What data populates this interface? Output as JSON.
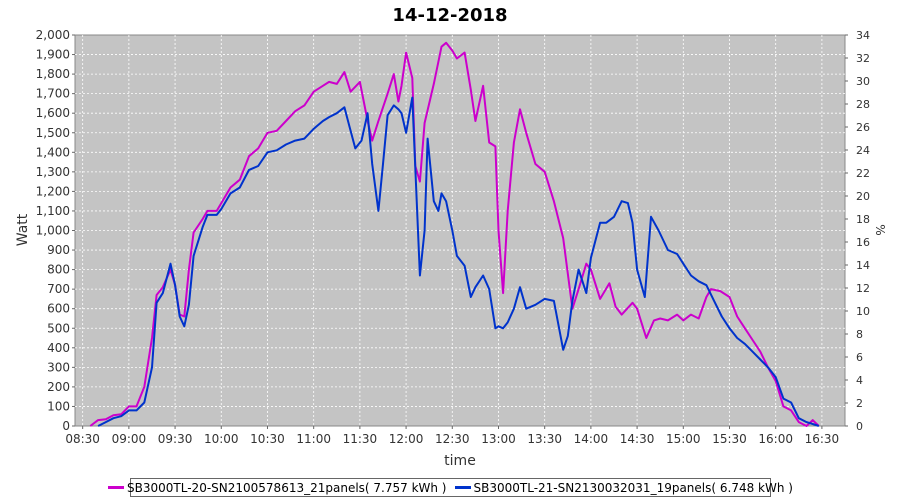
{
  "chart_data": {
    "type": "line",
    "title": "14-12-2018",
    "xlabel": "time",
    "ylabel": "Watt",
    "y2label": "%",
    "ylim": [
      0,
      2000
    ],
    "y2lim": [
      0,
      34
    ],
    "x_range_hours": [
      8.417,
      16.75
    ],
    "grid": true,
    "legend_position": "bottom",
    "x_ticks": [
      {
        "t": 8.5,
        "label": "08:30"
      },
      {
        "t": 9.0,
        "label": "09:00"
      },
      {
        "t": 9.5,
        "label": "09:30"
      },
      {
        "t": 10.0,
        "label": "10:00"
      },
      {
        "t": 10.5,
        "label": "10:30"
      },
      {
        "t": 11.0,
        "label": "11:00"
      },
      {
        "t": 11.5,
        "label": "11:30"
      },
      {
        "t": 12.0,
        "label": "12:00"
      },
      {
        "t": 12.5,
        "label": "12:30"
      },
      {
        "t": 13.0,
        "label": "13:00"
      },
      {
        "t": 13.5,
        "label": "13:30"
      },
      {
        "t": 14.0,
        "label": "14:00"
      },
      {
        "t": 14.5,
        "label": "14:30"
      },
      {
        "t": 15.0,
        "label": "15:00"
      },
      {
        "t": 15.5,
        "label": "15:30"
      },
      {
        "t": 16.0,
        "label": "16:00"
      },
      {
        "t": 16.5,
        "label": "16:30"
      }
    ],
    "y_ticks": [
      {
        "v": 0,
        "label": "0"
      },
      {
        "v": 100,
        "label": "100"
      },
      {
        "v": 200,
        "label": "200"
      },
      {
        "v": 300,
        "label": "300"
      },
      {
        "v": 400,
        "label": "400"
      },
      {
        "v": 500,
        "label": "500"
      },
      {
        "v": 600,
        "label": "600"
      },
      {
        "v": 700,
        "label": "700"
      },
      {
        "v": 800,
        "label": "800"
      },
      {
        "v": 900,
        "label": "900"
      },
      {
        "v": 1000,
        "label": "1,000"
      },
      {
        "v": 1100,
        "label": "1,100"
      },
      {
        "v": 1200,
        "label": "1,200"
      },
      {
        "v": 1300,
        "label": "1,300"
      },
      {
        "v": 1400,
        "label": "1,400"
      },
      {
        "v": 1500,
        "label": "1,500"
      },
      {
        "v": 1600,
        "label": "1,600"
      },
      {
        "v": 1700,
        "label": "1,700"
      },
      {
        "v": 1800,
        "label": "1,800"
      },
      {
        "v": 1900,
        "label": "1,900"
      },
      {
        "v": 2000,
        "label": "2,000"
      }
    ],
    "y2_ticks": [
      {
        "v": 0,
        "label": "0"
      },
      {
        "v": 2,
        "label": "2"
      },
      {
        "v": 4,
        "label": "4"
      },
      {
        "v": 6,
        "label": "6"
      },
      {
        "v": 8,
        "label": "8"
      },
      {
        "v": 10,
        "label": "10"
      },
      {
        "v": 12,
        "label": "12"
      },
      {
        "v": 14,
        "label": "14"
      },
      {
        "v": 16,
        "label": "16"
      },
      {
        "v": 18,
        "label": "18"
      },
      {
        "v": 20,
        "label": "20"
      },
      {
        "v": 22,
        "label": "22"
      },
      {
        "v": 24,
        "label": "24"
      },
      {
        "v": 26,
        "label": "26"
      },
      {
        "v": 28,
        "label": "28"
      },
      {
        "v": 30,
        "label": "30"
      },
      {
        "v": 32,
        "label": "32"
      },
      {
        "v": 34,
        "label": "34"
      }
    ],
    "series": [
      {
        "name": "SB3000TL-20-SN2100578613_21panels( 7.757 kWh )",
        "color": "#cc00cc",
        "points": [
          [
            8.583,
            0
          ],
          [
            8.667,
            30
          ],
          [
            8.75,
            35
          ],
          [
            8.833,
            55
          ],
          [
            8.917,
            60
          ],
          [
            9.0,
            100
          ],
          [
            9.083,
            100
          ],
          [
            9.167,
            200
          ],
          [
            9.25,
            450
          ],
          [
            9.3,
            670
          ],
          [
            9.367,
            710
          ],
          [
            9.45,
            800
          ],
          [
            9.5,
            720
          ],
          [
            9.55,
            570
          ],
          [
            9.6,
            560
          ],
          [
            9.65,
            800
          ],
          [
            9.7,
            990
          ],
          [
            9.8,
            1060
          ],
          [
            9.85,
            1100
          ],
          [
            9.95,
            1100
          ],
          [
            10.0,
            1140
          ],
          [
            10.1,
            1220
          ],
          [
            10.2,
            1260
          ],
          [
            10.3,
            1380
          ],
          [
            10.4,
            1420
          ],
          [
            10.5,
            1500
          ],
          [
            10.6,
            1510
          ],
          [
            10.7,
            1560
          ],
          [
            10.8,
            1610
          ],
          [
            10.9,
            1640
          ],
          [
            11.0,
            1710
          ],
          [
            11.1,
            1740
          ],
          [
            11.167,
            1760
          ],
          [
            11.25,
            1750
          ],
          [
            11.333,
            1810
          ],
          [
            11.4,
            1710
          ],
          [
            11.5,
            1760
          ],
          [
            11.583,
            1560
          ],
          [
            11.633,
            1460
          ],
          [
            11.7,
            1560
          ],
          [
            11.8,
            1700
          ],
          [
            11.867,
            1800
          ],
          [
            11.917,
            1660
          ],
          [
            11.95,
            1740
          ],
          [
            12.0,
            1910
          ],
          [
            12.067,
            1780
          ],
          [
            12.1,
            1330
          ],
          [
            12.15,
            1250
          ],
          [
            12.2,
            1550
          ],
          [
            12.3,
            1750
          ],
          [
            12.383,
            1940
          ],
          [
            12.433,
            1960
          ],
          [
            12.5,
            1920
          ],
          [
            12.55,
            1880
          ],
          [
            12.633,
            1910
          ],
          [
            12.7,
            1720
          ],
          [
            12.75,
            1560
          ],
          [
            12.833,
            1740
          ],
          [
            12.9,
            1450
          ],
          [
            12.967,
            1430
          ],
          [
            13.0,
            1000
          ],
          [
            13.05,
            680
          ],
          [
            13.1,
            1100
          ],
          [
            13.167,
            1450
          ],
          [
            13.233,
            1620
          ],
          [
            13.3,
            1500
          ],
          [
            13.4,
            1340
          ],
          [
            13.5,
            1300
          ],
          [
            13.6,
            1150
          ],
          [
            13.7,
            960
          ],
          [
            13.8,
            600
          ],
          [
            13.867,
            700
          ],
          [
            13.95,
            830
          ],
          [
            14.0,
            800
          ],
          [
            14.1,
            650
          ],
          [
            14.2,
            730
          ],
          [
            14.267,
            610
          ],
          [
            14.333,
            570
          ],
          [
            14.45,
            630
          ],
          [
            14.5,
            600
          ],
          [
            14.6,
            450
          ],
          [
            14.683,
            540
          ],
          [
            14.75,
            550
          ],
          [
            14.833,
            540
          ],
          [
            14.933,
            570
          ],
          [
            15.0,
            540
          ],
          [
            15.083,
            570
          ],
          [
            15.167,
            550
          ],
          [
            15.25,
            660
          ],
          [
            15.3,
            700
          ],
          [
            15.4,
            690
          ],
          [
            15.5,
            660
          ],
          [
            15.583,
            560
          ],
          [
            15.667,
            500
          ],
          [
            15.75,
            440
          ],
          [
            15.833,
            380
          ],
          [
            15.917,
            300
          ],
          [
            16.0,
            230
          ],
          [
            16.083,
            100
          ],
          [
            16.167,
            80
          ],
          [
            16.25,
            20
          ],
          [
            16.333,
            0
          ],
          [
            16.4,
            30
          ],
          [
            16.467,
            0
          ]
        ]
      },
      {
        "name": "SB3000TL-21-SN2130032031_19panels( 6.748 kWh )",
        "color": "#0033cc",
        "points": [
          [
            8.667,
            0
          ],
          [
            8.75,
            20
          ],
          [
            8.833,
            40
          ],
          [
            8.917,
            50
          ],
          [
            9.0,
            80
          ],
          [
            9.083,
            80
          ],
          [
            9.167,
            120
          ],
          [
            9.25,
            300
          ],
          [
            9.3,
            630
          ],
          [
            9.367,
            680
          ],
          [
            9.45,
            830
          ],
          [
            9.5,
            720
          ],
          [
            9.55,
            560
          ],
          [
            9.6,
            510
          ],
          [
            9.65,
            620
          ],
          [
            9.7,
            870
          ],
          [
            9.8,
            1020
          ],
          [
            9.85,
            1080
          ],
          [
            9.95,
            1080
          ],
          [
            10.0,
            1110
          ],
          [
            10.1,
            1190
          ],
          [
            10.2,
            1220
          ],
          [
            10.3,
            1310
          ],
          [
            10.4,
            1330
          ],
          [
            10.5,
            1400
          ],
          [
            10.6,
            1410
          ],
          [
            10.7,
            1440
          ],
          [
            10.8,
            1460
          ],
          [
            10.9,
            1470
          ],
          [
            11.0,
            1520
          ],
          [
            11.1,
            1560
          ],
          [
            11.167,
            1580
          ],
          [
            11.25,
            1600
          ],
          [
            11.333,
            1630
          ],
          [
            11.4,
            1510
          ],
          [
            11.45,
            1420
          ],
          [
            11.517,
            1460
          ],
          [
            11.583,
            1600
          ],
          [
            11.633,
            1340
          ],
          [
            11.7,
            1100
          ],
          [
            11.75,
            1340
          ],
          [
            11.8,
            1590
          ],
          [
            11.867,
            1640
          ],
          [
            11.917,
            1620
          ],
          [
            11.95,
            1600
          ],
          [
            12.0,
            1500
          ],
          [
            12.067,
            1680
          ],
          [
            12.1,
            1320
          ],
          [
            12.15,
            770
          ],
          [
            12.2,
            1000
          ],
          [
            12.233,
            1470
          ],
          [
            12.3,
            1150
          ],
          [
            12.35,
            1100
          ],
          [
            12.383,
            1190
          ],
          [
            12.433,
            1150
          ],
          [
            12.5,
            1000
          ],
          [
            12.55,
            870
          ],
          [
            12.633,
            820
          ],
          [
            12.7,
            660
          ],
          [
            12.75,
            710
          ],
          [
            12.833,
            770
          ],
          [
            12.9,
            700
          ],
          [
            12.967,
            500
          ],
          [
            13.0,
            510
          ],
          [
            13.05,
            500
          ],
          [
            13.1,
            530
          ],
          [
            13.167,
            600
          ],
          [
            13.233,
            710
          ],
          [
            13.3,
            600
          ],
          [
            13.4,
            620
          ],
          [
            13.5,
            650
          ],
          [
            13.6,
            640
          ],
          [
            13.7,
            390
          ],
          [
            13.75,
            460
          ],
          [
            13.8,
            640
          ],
          [
            13.867,
            800
          ],
          [
            13.95,
            680
          ],
          [
            14.0,
            860
          ],
          [
            14.1,
            1040
          ],
          [
            14.167,
            1040
          ],
          [
            14.25,
            1070
          ],
          [
            14.333,
            1150
          ],
          [
            14.4,
            1140
          ],
          [
            14.45,
            1040
          ],
          [
            14.5,
            800
          ],
          [
            14.583,
            660
          ],
          [
            14.65,
            1070
          ],
          [
            14.733,
            1000
          ],
          [
            14.833,
            900
          ],
          [
            14.933,
            880
          ],
          [
            15.0,
            830
          ],
          [
            15.083,
            770
          ],
          [
            15.167,
            740
          ],
          [
            15.25,
            720
          ],
          [
            15.333,
            640
          ],
          [
            15.417,
            560
          ],
          [
            15.5,
            500
          ],
          [
            15.583,
            450
          ],
          [
            15.667,
            420
          ],
          [
            15.75,
            380
          ],
          [
            15.833,
            340
          ],
          [
            15.917,
            300
          ],
          [
            16.0,
            250
          ],
          [
            16.083,
            140
          ],
          [
            16.167,
            120
          ],
          [
            16.25,
            40
          ],
          [
            16.333,
            20
          ],
          [
            16.4,
            10
          ],
          [
            16.467,
            0
          ]
        ]
      }
    ]
  }
}
